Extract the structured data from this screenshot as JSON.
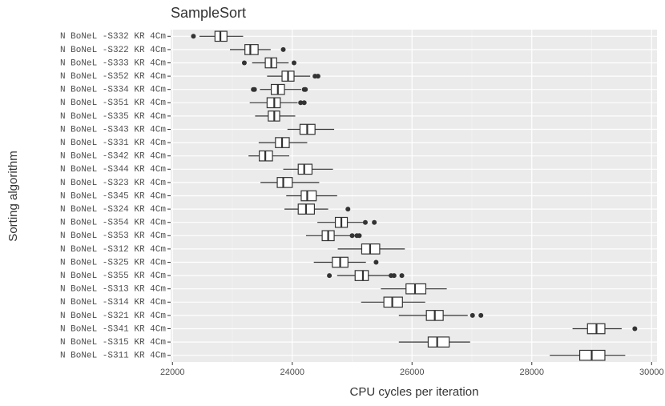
{
  "chart_data": {
    "type": "boxplot",
    "title": "SampleSort",
    "x_label": "CPU cycles per iteration",
    "y_label": "Sorting algorithm",
    "xlim": [
      21970,
      30090
    ],
    "xticks": [
      22000,
      24000,
      26000,
      28000,
      30000
    ],
    "categories": [
      "N BoNeL -S332 KR 4Cm",
      "N BoNeL -S322 KR 4Cm",
      "N BoNeL -S333 KR 4Cm",
      "N BoNeL -S352 KR 4Cm",
      "N BoNeL -S334 KR 4Cm",
      "N BoNeL -S351 KR 4Cm",
      "N BoNeL -S335 KR 4Cm",
      "N BoNeL -S343 KR 4Cm",
      "N BoNeL -S331 KR 4Cm",
      "N BoNeL -S342 KR 4Cm",
      "N BoNeL -S344 KR 4Cm",
      "N BoNeL -S323 KR 4Cm",
      "N BoNeL -S345 KR 4Cm",
      "N BoNeL -S324 KR 4Cm",
      "N BoNeL -S354 KR 4Cm",
      "N BoNeL -S353 KR 4Cm",
      "N BoNeL -S312 KR 4Cm",
      "N BoNeL -S325 KR 4Cm",
      "N BoNeL -S355 KR 4Cm",
      "N BoNeL -S313 KR 4Cm",
      "N BoNeL -S314 KR 4Cm",
      "N BoNeL -S321 KR 4Cm",
      "N BoNeL -S341 KR 4Cm",
      "N BoNeL -S315 KR 4Cm",
      "N BoNeL -S311 KR 4Cm"
    ],
    "boxes": [
      {
        "low": 22450,
        "q1": 22710,
        "median": 22800,
        "q3": 22910,
        "high": 23180,
        "outliers": [
          22350
        ]
      },
      {
        "low": 22960,
        "q1": 23210,
        "median": 23300,
        "q3": 23430,
        "high": 23640,
        "outliers": [
          23850
        ]
      },
      {
        "low": 23330,
        "q1": 23550,
        "median": 23650,
        "q3": 23740,
        "high": 23940,
        "outliers": [
          23200,
          24030
        ]
      },
      {
        "low": 23580,
        "q1": 23830,
        "median": 23930,
        "q3": 24030,
        "high": 24300,
        "outliers": [
          24380,
          24430
        ]
      },
      {
        "low": 23460,
        "q1": 23650,
        "median": 23760,
        "q3": 23870,
        "high": 24150,
        "outliers": [
          23350,
          23370,
          24200,
          24220
        ]
      },
      {
        "low": 23290,
        "q1": 23580,
        "median": 23700,
        "q3": 23800,
        "high": 24090,
        "outliers": [
          24140,
          24200
        ]
      },
      {
        "low": 23380,
        "q1": 23600,
        "median": 23700,
        "q3": 23790,
        "high": 24050,
        "outliers": []
      },
      {
        "low": 23920,
        "q1": 24130,
        "median": 24250,
        "q3": 24380,
        "high": 24700,
        "outliers": []
      },
      {
        "low": 23440,
        "q1": 23720,
        "median": 23830,
        "q3": 23950,
        "high": 24250,
        "outliers": []
      },
      {
        "low": 23270,
        "q1": 23450,
        "median": 23550,
        "q3": 23670,
        "high": 23950,
        "outliers": []
      },
      {
        "low": 23850,
        "q1": 24100,
        "median": 24200,
        "q3": 24330,
        "high": 24680,
        "outliers": []
      },
      {
        "low": 23470,
        "q1": 23750,
        "median": 23850,
        "q3": 24000,
        "high": 24450,
        "outliers": []
      },
      {
        "low": 23900,
        "q1": 24150,
        "median": 24250,
        "q3": 24400,
        "high": 24750,
        "outliers": []
      },
      {
        "low": 23870,
        "q1": 24100,
        "median": 24230,
        "q3": 24370,
        "high": 24600,
        "outliers": [
          24930
        ]
      },
      {
        "low": 24420,
        "q1": 24720,
        "median": 24820,
        "q3": 24920,
        "high": 25180,
        "outliers": [
          25220,
          25370
        ]
      },
      {
        "low": 24230,
        "q1": 24500,
        "median": 24600,
        "q3": 24700,
        "high": 24970,
        "outliers": [
          25000,
          25080,
          25120
        ]
      },
      {
        "low": 24760,
        "q1": 25160,
        "median": 25300,
        "q3": 25460,
        "high": 25880,
        "outliers": []
      },
      {
        "low": 24360,
        "q1": 24670,
        "median": 24800,
        "q3": 24930,
        "high": 25230,
        "outliers": [
          25400
        ]
      },
      {
        "low": 24750,
        "q1": 25050,
        "median": 25180,
        "q3": 25270,
        "high": 25640,
        "outliers": [
          24620,
          25650,
          25700,
          25830
        ]
      },
      {
        "low": 25480,
        "q1": 25900,
        "median": 26050,
        "q3": 26230,
        "high": 26580,
        "outliers": []
      },
      {
        "low": 25150,
        "q1": 25530,
        "median": 25670,
        "q3": 25840,
        "high": 26220,
        "outliers": []
      },
      {
        "low": 25780,
        "q1": 26240,
        "median": 26380,
        "q3": 26520,
        "high": 26930,
        "outliers": [
          27010,
          27150
        ]
      },
      {
        "low": 28680,
        "q1": 28930,
        "median": 29080,
        "q3": 29220,
        "high": 29500,
        "outliers": [
          29720
        ]
      },
      {
        "low": 25780,
        "q1": 26270,
        "median": 26420,
        "q3": 26620,
        "high": 26970,
        "outliers": []
      },
      {
        "low": 28300,
        "q1": 28800,
        "median": 29000,
        "q3": 29220,
        "high": 29560,
        "outliers": []
      }
    ],
    "grid": true
  }
}
